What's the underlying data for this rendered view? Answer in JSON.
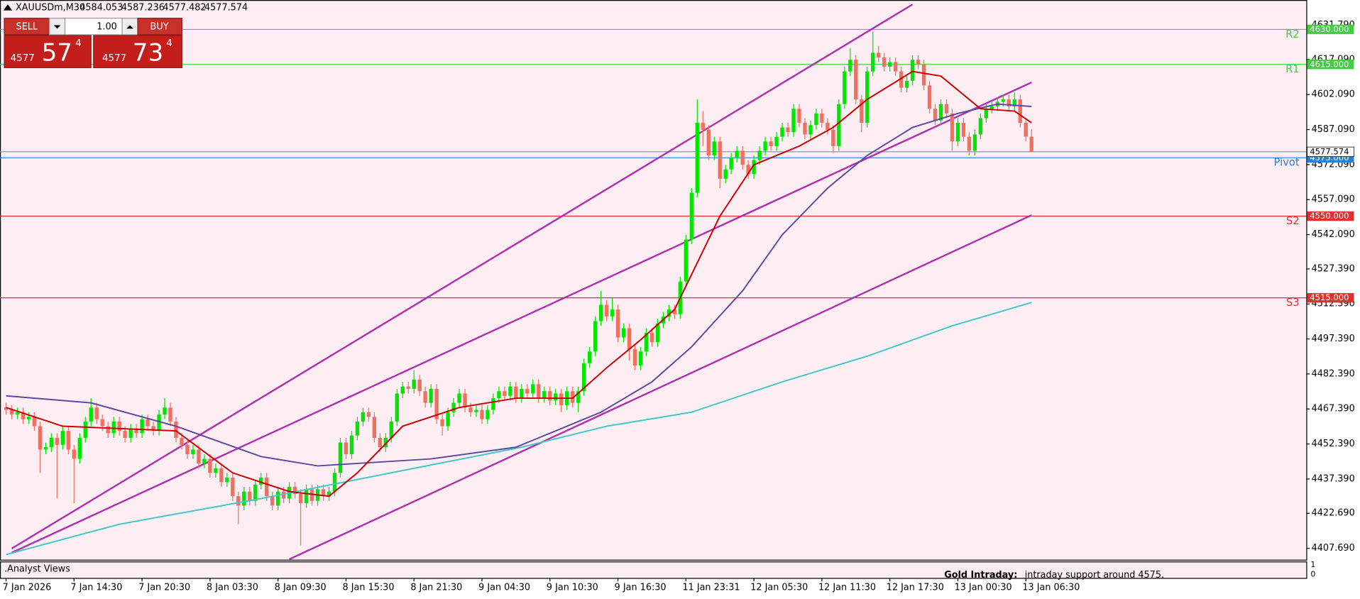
{
  "chart_data": {
    "type": "candlestick",
    "symbol": "XAUUSDm,M30",
    "trade_panel": {
      "sell": "SELL",
      "buy": "BUY",
      "lot": "1.00",
      "bid_big": "4577",
      "bid_digits": "57",
      "bid_point": "4",
      "ask_big": "4577",
      "ask_digits": "73",
      "ask_point": "4"
    },
    "bull_color": "#00e600",
    "bear_color": "#f07060",
    "ylim": [
      4402.8,
      4642.6
    ],
    "yticks": [
      {
        "value": 4631.79,
        "label": "4631.790"
      },
      {
        "value": 4617.09,
        "label": "4617.090"
      },
      {
        "value": 4602.09,
        "label": "4602.090"
      },
      {
        "value": 4587.09,
        "label": "4587.090"
      },
      {
        "value": 4572.09,
        "label": "4572.090"
      },
      {
        "value": 4557.09,
        "label": "4557.090"
      },
      {
        "value": 4542.09,
        "label": "4542.090"
      },
      {
        "value": 4527.39,
        "label": "4527.390"
      },
      {
        "value": 4512.39,
        "label": "4512.390"
      },
      {
        "value": 4497.39,
        "label": "4497.390"
      },
      {
        "value": 4482.39,
        "label": "4482.390"
      },
      {
        "value": 4467.39,
        "label": "4467.390"
      },
      {
        "value": 4452.39,
        "label": "4452.390"
      },
      {
        "value": 4437.39,
        "label": "4437.390"
      },
      {
        "value": 4422.69,
        "label": "4422.690"
      },
      {
        "value": 4407.69,
        "label": "4407.690"
      }
    ],
    "xlim": [
      -1.07,
      229.5
    ],
    "xticks": [
      {
        "value": 0,
        "label": "7 Jan 2026"
      },
      {
        "value": 12,
        "label": "7 Jan 14:30"
      },
      {
        "value": 24,
        "label": "7 Jan 20:30"
      },
      {
        "value": 36,
        "label": "8 Jan 03:30"
      },
      {
        "value": 48,
        "label": "8 Jan 09:30"
      },
      {
        "value": 60,
        "label": "8 Jan 15:30"
      },
      {
        "value": 72,
        "label": "8 Jan 21:30"
      },
      {
        "value": 84,
        "label": "9 Jan 04:30"
      },
      {
        "value": 96,
        "label": "9 Jan 10:30"
      },
      {
        "value": 108,
        "label": "9 Jan 16:30"
      },
      {
        "value": 120,
        "label": "11 Jan 23:31"
      },
      {
        "value": 132,
        "label": "12 Jan 05:30"
      },
      {
        "value": 144,
        "label": "12 Jan 11:30"
      },
      {
        "value": 156,
        "label": "12 Jan 17:30"
      },
      {
        "value": 168,
        "label": "13 Jan 00:30"
      },
      {
        "value": 180,
        "label": "13 Jan 06:30"
      }
    ],
    "open": [
      4468,
      4467,
      4465,
      4466,
      4463,
      4464,
      4460,
      4450,
      4451,
      4455,
      4452,
      4458,
      4450,
      4446,
      4455,
      4462,
      4468,
      4463,
      4460,
      4457,
      4462,
      4458,
      4455,
      4459,
      4457,
      4463,
      4460,
      4458,
      4465,
      4468,
      4462,
      4455,
      4452,
      4448,
      4450,
      4444,
      4446,
      4440,
      4442,
      4436,
      4438,
      4430,
      4426,
      4432,
      4428,
      4435,
      4438,
      4430,
      4426,
      4432,
      4429,
      4434,
      4431,
      4427,
      4433,
      4428,
      4433,
      4430,
      4432,
      4440,
      4453,
      4448,
      4456,
      4462,
      4466,
      4464,
      4455,
      4451,
      4455,
      4462,
      4474,
      4477,
      4476,
      4480,
      4475,
      4470,
      4476,
      4463,
      4460,
      4466,
      4470,
      4474,
      4468,
      4466,
      4467,
      4463,
      4467,
      4472,
      4475,
      4473,
      4477,
      4472,
      4476,
      4474,
      4478,
      4472,
      4475,
      4471,
      4474,
      4469,
      4475,
      4470,
      4475,
      4487,
      4492,
      4505,
      4512,
      4507,
      4510,
      4498,
      4502,
      4493,
      4486,
      4492,
      4500,
      4496,
      4504,
      4507,
      4510,
      4508,
      4522,
      4540,
      4560,
      4590,
      4587,
      4576,
      4582,
      4566,
      4570,
      4575,
      4578,
      4572,
      4568,
      4574,
      4578,
      4582,
      4580,
      4584,
      4588,
      4586,
      4596,
      4590,
      4585,
      4589,
      4594,
      4590,
      4587,
      4580,
      4598,
      4612,
      4617,
      4600,
      4590,
      4612,
      4620,
      4618,
      4614,
      4616,
      4612,
      4605,
      4608,
      4617,
      4615,
      4606,
      4596,
      4591,
      4598,
      4594,
      4582,
      4590,
      4584,
      4578,
      4585,
      4592,
      4596,
      4597,
      4599,
      4600,
      4597,
      4600,
      4590,
      4584.053
    ],
    "high": [
      4470,
      4469,
      4468,
      4468,
      4466,
      4466,
      4462,
      4453,
      4457,
      4457,
      4460,
      4460,
      4452,
      4457,
      4464,
      4472,
      4470,
      4465,
      4462,
      4464,
      4464,
      4460,
      4461,
      4461,
      4465,
      4465,
      4462,
      4467,
      4472,
      4470,
      4464,
      4457,
      4454,
      4452,
      4452,
      4448,
      4448,
      4444,
      4444,
      4440,
      4440,
      4432,
      4434,
      4434,
      4437,
      4440,
      4440,
      4432,
      4434,
      4434,
      4436,
      4436,
      4433,
      4435,
      4435,
      4435,
      4435,
      4434,
      4442,
      4455,
      4455,
      4458,
      4464,
      4468,
      4468,
      4466,
      4457,
      4457,
      4464,
      4476,
      4479,
      4479,
      4484,
      4482,
      4477,
      4478,
      4478,
      4465,
      4468,
      4472,
      4476,
      4476,
      4470,
      4469,
      4469,
      4469,
      4474,
      4477,
      4477,
      4479,
      4479,
      4478,
      4478,
      4480,
      4480,
      4477,
      4477,
      4476,
      4476,
      4477,
      4477,
      4477,
      4489,
      4494,
      4507,
      4518,
      4514,
      4515,
      4512,
      4504,
      4504,
      4495,
      4494,
      4502,
      4502,
      4506,
      4509,
      4512,
      4512,
      4524,
      4542,
      4562,
      4600,
      4595,
      4589,
      4584,
      4584,
      4572,
      4577,
      4580,
      4580,
      4574,
      4576,
      4580,
      4584,
      4584,
      4586,
      4590,
      4590,
      4598,
      4598,
      4592,
      4591,
      4596,
      4596,
      4592,
      4589,
      4600,
      4614,
      4622,
      4619,
      4602,
      4614,
      4629,
      4623,
      4620,
      4618,
      4618,
      4614,
      4610,
      4619,
      4619,
      4617,
      4608,
      4598,
      4600,
      4600,
      4596,
      4592,
      4592,
      4586,
      4587,
      4594,
      4598,
      4599,
      4601,
      4602,
      4602,
      4603,
      4602,
      4592,
      4587.236
    ],
    "low": [
      4465,
      4463,
      4463,
      4461,
      4461,
      4458,
      4440,
      4448,
      4449,
      4429,
      4450,
      4448,
      4427,
      4444,
      4453,
      4460,
      4461,
      4458,
      4455,
      4455,
      4456,
      4453,
      4453,
      4455,
      4455,
      4458,
      4456,
      4456,
      4463,
      4460,
      4453,
      4450,
      4446,
      4446,
      4442,
      4442,
      4438,
      4438,
      4434,
      4434,
      4428,
      4418,
      4424,
      4426,
      4426,
      4433,
      4428,
      4424,
      4424,
      4427,
      4427,
      4429,
      4409,
      4425,
      4426,
      4426,
      4428,
      4428,
      4430,
      4438,
      4446,
      4446,
      4454,
      4460,
      4462,
      4453,
      4449,
      4449,
      4453,
      4460,
      4472,
      4474,
      4474,
      4473,
      4468,
      4468,
      4461,
      4456,
      4458,
      4464,
      4468,
      4466,
      4464,
      4464,
      4461,
      4461,
      4465,
      4470,
      4471,
      4471,
      4470,
      4470,
      4472,
      4472,
      4470,
      4470,
      4469,
      4469,
      4466,
      4467,
      4468,
      4466,
      4473,
      4485,
      4490,
      4503,
      4505,
      4505,
      4496,
      4496,
      4488,
      4484,
      4484,
      4490,
      4494,
      4494,
      4502,
      4505,
      4506,
      4506,
      4520,
      4538,
      4558,
      4580,
      4574,
      4574,
      4562,
      4564,
      4568,
      4573,
      4570,
      4566,
      4566,
      4572,
      4576,
      4578,
      4578,
      4582,
      4584,
      4584,
      4588,
      4583,
      4583,
      4587,
      4588,
      4585,
      4577,
      4578,
      4596,
      4610,
      4598,
      4586,
      4588,
      4610,
      4616,
      4612,
      4612,
      4610,
      4603,
      4603,
      4606,
      4613,
      4604,
      4594,
      4589,
      4589,
      4592,
      4578,
      4580,
      4582,
      4576,
      4576,
      4583,
      4590,
      4594,
      4595,
      4597,
      4595,
      4595,
      4588,
      4582,
      4577.482
    ],
    "close": [
      4467,
      4465,
      4466,
      4463,
      4464,
      4460,
      4450,
      4451,
      4455,
      4452,
      4458,
      4450,
      4446,
      4455,
      4462,
      4468,
      4463,
      4460,
      4457,
      4462,
      4458,
      4455,
      4459,
      4457,
      4463,
      4460,
      4458,
      4465,
      4468,
      4462,
      4455,
      4452,
      4448,
      4450,
      4444,
      4446,
      4440,
      4442,
      4436,
      4438,
      4430,
      4426,
      4432,
      4428,
      4435,
      4438,
      4430,
      4426,
      4432,
      4429,
      4434,
      4431,
      4427,
      4433,
      4428,
      4433,
      4430,
      4432,
      4440,
      4453,
      4448,
      4456,
      4462,
      4466,
      4464,
      4455,
      4451,
      4455,
      4462,
      4474,
      4477,
      4476,
      4480,
      4475,
      4470,
      4476,
      4463,
      4460,
      4466,
      4470,
      4474,
      4468,
      4466,
      4467,
      4463,
      4467,
      4472,
      4475,
      4473,
      4477,
      4472,
      4476,
      4474,
      4478,
      4472,
      4475,
      4471,
      4474,
      4469,
      4475,
      4470,
      4475,
      4487,
      4492,
      4505,
      4512,
      4507,
      4510,
      4498,
      4502,
      4493,
      4486,
      4492,
      4500,
      4496,
      4504,
      4507,
      4510,
      4508,
      4522,
      4540,
      4560,
      4590,
      4587,
      4576,
      4582,
      4566,
      4570,
      4575,
      4578,
      4572,
      4568,
      4574,
      4578,
      4582,
      4580,
      4584,
      4588,
      4586,
      4596,
      4590,
      4585,
      4589,
      4594,
      4590,
      4587,
      4580,
      4598,
      4612,
      4617,
      4600,
      4590,
      4612,
      4620,
      4618,
      4614,
      4616,
      4612,
      4605,
      4608,
      4617,
      4615,
      4606,
      4596,
      4591,
      4598,
      4594,
      4582,
      4590,
      4584,
      4578,
      4585,
      4592,
      4596,
      4597,
      4599,
      4600,
      4597,
      4600,
      4590,
      4584.053,
      4577.574
    ],
    "indicators": [
      {
        "color": "#40c8c8",
        "x": [
          0,
          20,
          45,
          70,
          91,
          106,
          121,
          137,
          152,
          167,
          181
        ],
        "values": [
          4405,
          4418,
          4429,
          4441,
          4451,
          4460,
          4466,
          4479,
          4490,
          4503,
          4513
        ]
      },
      {
        "color": "#5b4a9e",
        "x": [
          0,
          15,
          30,
          45,
          55,
          75,
          90,
          105,
          114,
          121,
          130,
          137,
          145,
          152,
          160,
          168,
          175,
          181
        ],
        "values": [
          4473,
          4470,
          4460,
          4447,
          4443,
          4446,
          4451,
          4466,
          4479,
          4494,
          4518,
          4542,
          4562,
          4576,
          4588,
          4594,
          4598,
          4597
        ]
      },
      {
        "color": "#cc0000",
        "x": [
          0,
          10,
          20,
          30,
          40,
          50,
          57,
          62,
          70,
          80,
          90,
          100,
          106,
          112,
          118,
          120,
          126,
          132,
          140,
          146,
          152,
          160,
          165,
          172,
          178,
          181
        ],
        "values": [
          4468,
          4460,
          4459,
          4458,
          4440,
          4432,
          4430,
          4440,
          4460,
          4468,
          4472,
          4472,
          4485,
          4497,
          4510,
          4520,
          4550,
          4572,
          4580,
          4588,
          4600,
          4612,
          4610,
          4596,
          4595,
          4590
        ]
      }
    ],
    "trendlines": [
      {
        "color": "#b030b0",
        "x": [
          1,
          160
        ],
        "values": [
          4407.6,
          4640.7
        ]
      },
      {
        "color": "#b030b0",
        "x": [
          1,
          181
        ],
        "values": [
          4405.8,
          4607.3
        ]
      },
      {
        "color": "#b030b0",
        "x": [
          50,
          181
        ],
        "values": [
          4403,
          4550.4
        ]
      }
    ],
    "levels": [
      {
        "label": "R2",
        "value": 4630,
        "value_label": "4630.000",
        "color": "#44cc44"
      },
      {
        "label": "R1",
        "value": 4615,
        "value_label": "4615.000",
        "color": "#44cc44"
      },
      {
        "label": "Pivot",
        "value": 4575,
        "value_label": "4575.000",
        "color": "#2a7fd4"
      },
      {
        "label": "S2",
        "value": 4550,
        "value_label": "4550.000",
        "color": "#e03030"
      },
      {
        "label": "S3",
        "value": 4515,
        "value_label": "4515.000",
        "color": "#e03030"
      }
    ],
    "current_price_color": "#8a9ab0",
    "subwindow": {
      "name": ".Analyst Views",
      "text_label": "Gold Intraday:",
      "text": "intraday support around 4575.",
      "ylim": [
        0,
        1
      ],
      "yticks": [
        0,
        1
      ]
    }
  }
}
